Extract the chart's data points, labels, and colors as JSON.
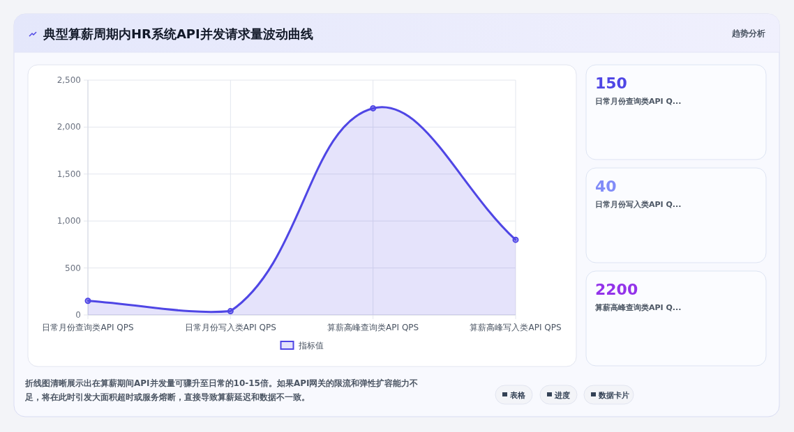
{
  "chart_data": [
    {
      "type": "area",
      "title": "典型算薪周期内HR系统API并发请求量波动曲线",
      "categories": [
        "日常月份查询类API QPS",
        "日常月份写入类API QPS",
        "算薪高峰查询类API QPS",
        "算薪高峰写入类API QPS"
      ],
      "series": [
        {
          "name": "指标值",
          "color": "#4f46e5",
          "values": [
            150,
            40,
            2200,
            800
          ]
        }
      ],
      "ylim": [
        0,
        2500
      ],
      "yticks": [
        0,
        {
          "value": 500,
          "label": "500"
        },
        {
          "value": 1000,
          "label": "1,000"
        },
        {
          "value": 1500,
          "label": "1,500"
        },
        {
          "value": 2000,
          "label": "2,000"
        },
        {
          "value": 2500,
          "label": "2,500"
        }
      ],
      "grid": true,
      "legend": "bottom",
      "marker": "circle",
      "line_style": "solid",
      "annotations": [
        "趋势分析",
        "折线图清晰展示出在算薪期间API并发量可骤升至日常的10-15倍。如果API网关的限流和弹性扩容能力不足，将在此时引发大面积超时或服务熔断，直接导致算薪延迟和数据不一致。",
        "表格",
        "进度",
        "数据卡片"
      ]
    },
    {
      "type": "other",
      "annotations": [
        "150",
        "日常月份查询类API Q...",
        "40",
        "日常月份写入类API Q...",
        "2200",
        "算薪高峰查询类API Q..."
      ]
    }
  ]
}
